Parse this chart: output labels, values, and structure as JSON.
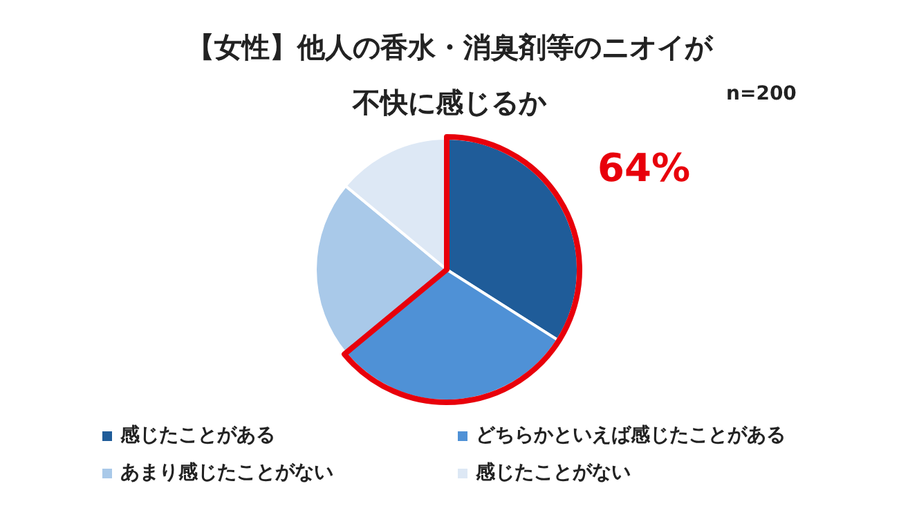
{
  "chart_data": {
    "type": "pie",
    "title": "【女性】他人の香水・消臭剤等のニオイが不快に感じるか",
    "subtitle": "n=200",
    "categories": [
      "感じたことがある",
      "どちらかといえば感じたことがある",
      "あまり感じたことがない",
      "感じたことがない"
    ],
    "values": [
      34,
      30,
      22,
      14
    ],
    "colors": [
      "#1f5c99",
      "#4f91d6",
      "#a9c9e9",
      "#dde8f5"
    ],
    "legend": "bottom",
    "annotations": [
      "64%"
    ]
  }
}
